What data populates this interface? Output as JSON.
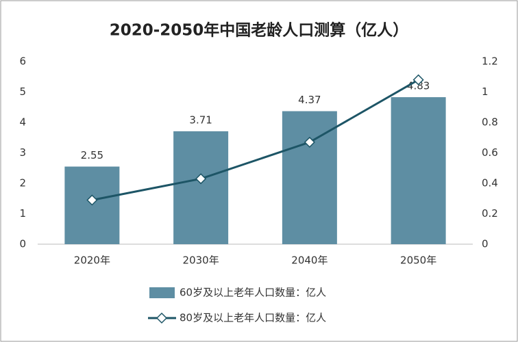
{
  "chart_data": {
    "type": "bar-line",
    "title": "2020-2050年中国老龄人口测算（亿人）",
    "categories": [
      "2020年",
      "2030年",
      "2040年",
      "2050年"
    ],
    "series": [
      {
        "name": "60岁及以上老年人口数量：亿人",
        "color": "#5e8ea3",
        "type": "bar",
        "values": [
          2.55,
          3.71,
          4.37,
          4.83
        ]
      },
      {
        "name": "80岁及以上老年人口数量：亿人",
        "color": "#1d5566",
        "type": "line",
        "axis": "y2",
        "values": [
          0.29,
          0.43,
          0.67,
          1.08
        ]
      }
    ],
    "ylim": [
      0,
      6
    ],
    "yticks": [
      0,
      1,
      2,
      3,
      4,
      5,
      6
    ],
    "y2lim": [
      0,
      1.2
    ],
    "y2ticks": [
      0,
      0.2,
      0.4,
      0.6,
      0.8,
      1,
      1.2
    ],
    "grid": false
  }
}
